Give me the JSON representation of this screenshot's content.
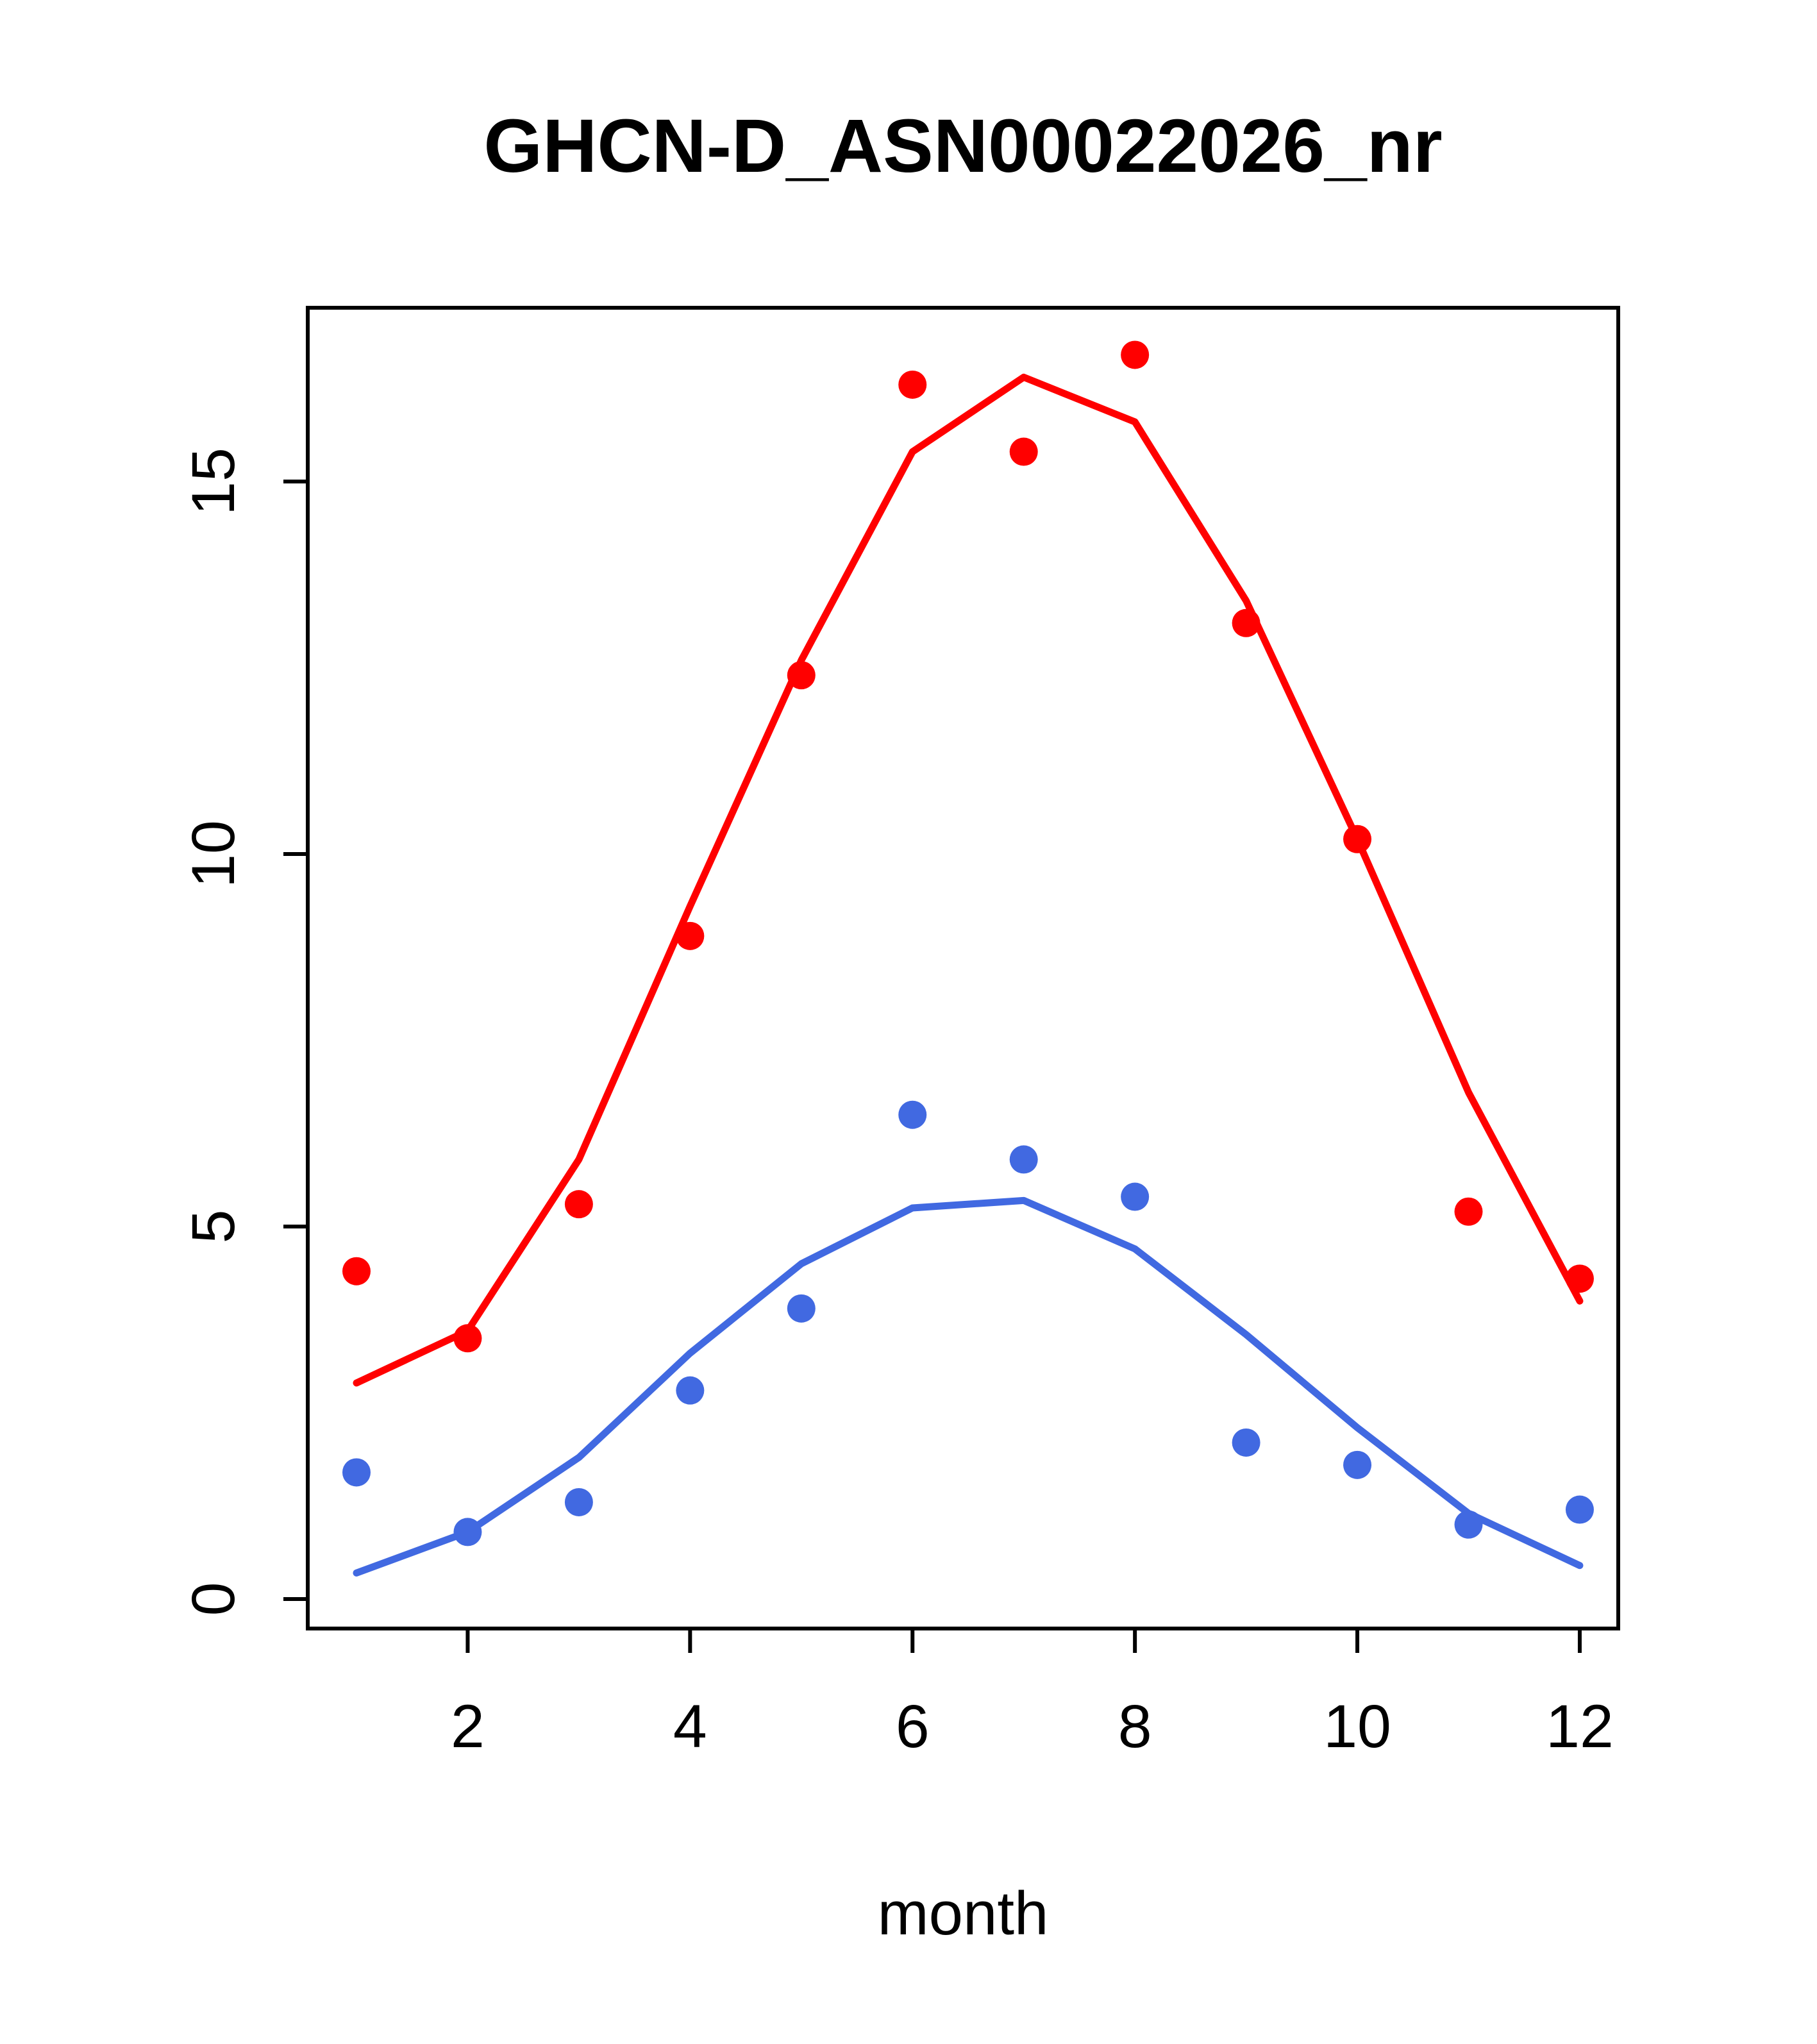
{
  "title": "GHCN-D_ASN00022026_nr",
  "chart_data": {
    "type": "scatter",
    "title": "GHCN-D_ASN00022026_nr",
    "xlabel": "month",
    "ylabel": "",
    "x": [
      1,
      2,
      3,
      4,
      5,
      6,
      7,
      8,
      9,
      10,
      11,
      12
    ],
    "x_ticks": [
      2,
      4,
      6,
      8,
      10,
      12
    ],
    "y_ticks": [
      0,
      5,
      10,
      15
    ],
    "xlim": [
      0.56,
      12.44
    ],
    "ylim": [
      0,
      17.4
    ],
    "grid": false,
    "legend": "none",
    "colors": {
      "red_series": "#ff0000",
      "blue_series": "#4169e1"
    },
    "series": [
      {
        "name": "red-line",
        "type": "line",
        "color": "#ff0000",
        "values": [
          2.9,
          3.6,
          5.9,
          9.3,
          12.6,
          15.4,
          16.4,
          15.8,
          13.4,
          10.2,
          6.8,
          4.0
        ]
      },
      {
        "name": "blue-line",
        "type": "line",
        "color": "#4169e1",
        "values": [
          0.35,
          0.9,
          1.9,
          3.3,
          4.5,
          5.25,
          5.35,
          4.7,
          3.55,
          2.3,
          1.15,
          0.45
        ]
      },
      {
        "name": "red-points",
        "type": "points",
        "color": "#ff0000",
        "values": [
          4.4,
          3.5,
          5.3,
          8.9,
          12.4,
          16.3,
          15.4,
          16.7,
          13.1,
          10.2,
          5.2,
          4.3
        ]
      },
      {
        "name": "blue-points",
        "type": "points",
        "color": "#4169e1",
        "values": [
          1.7,
          0.9,
          1.3,
          2.8,
          3.9,
          6.5,
          5.9,
          5.4,
          2.1,
          1.8,
          1.0,
          1.2
        ]
      }
    ]
  }
}
